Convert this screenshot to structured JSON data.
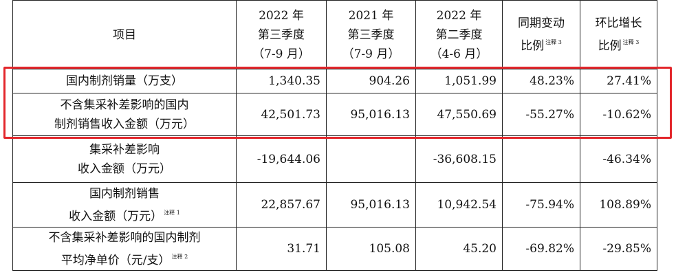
{
  "table": {
    "header": [
      {
        "lines": [
          "项目"
        ]
      },
      {
        "lines": [
          "2022 年",
          "第三季度",
          "（7-9 月）"
        ]
      },
      {
        "lines": [
          "2021 年",
          "第三季度",
          "（7-9 月）"
        ]
      },
      {
        "lines": [
          "2022 年",
          "第二季度",
          "（4-6 月）"
        ]
      },
      {
        "lines": [
          "同期变动",
          "比例"
        ],
        "note": "注释 3"
      },
      {
        "lines": [
          "环比增长",
          "比例"
        ],
        "note": "注释 3"
      }
    ],
    "rows": [
      {
        "label": [
          "国内制剂销量（万支）"
        ],
        "cells": [
          "1,340.35",
          "904.26",
          "1,051.99",
          "48.23%",
          "27.41%"
        ]
      },
      {
        "label": [
          "不含集采补差影响的国内",
          "制剂销售收入金额（万元）"
        ],
        "cells": [
          "42,501.73",
          "95,016.13",
          "47,550.69",
          "-55.27%",
          "-10.62%"
        ]
      },
      {
        "label": [
          "集采补差影响",
          "收入金额（万元）"
        ],
        "cells": [
          "-19,644.06",
          null,
          "-36,608.15",
          null,
          "-46.34%"
        ]
      },
      {
        "label": [
          "国内制剂销售",
          "收入金额（万元）"
        ],
        "note": "注释 1",
        "cells": [
          "22,857.67",
          "95,016.13",
          "10,942.54",
          "-75.94%",
          "108.89%"
        ]
      },
      {
        "label": [
          "不含集采补差影响的国内制剂",
          "平均净单价（元/支）"
        ],
        "note": "注释 2",
        "cells": [
          "31.71",
          "105.08",
          "45.20",
          "-69.82%",
          "-29.85%"
        ]
      }
    ]
  }
}
